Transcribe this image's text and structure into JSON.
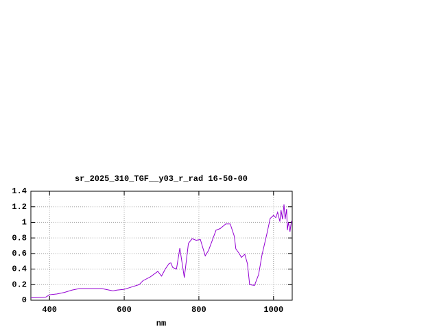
{
  "chart_data": {
    "type": "line",
    "title": "sr_2025_310_TGF__y03_r_rad 16-50-00",
    "xlabel": "nm",
    "x": [
      350,
      390,
      400,
      420,
      440,
      460,
      480,
      500,
      520,
      540,
      560,
      570,
      580,
      600,
      620,
      640,
      650,
      670,
      690,
      700,
      710,
      720,
      725,
      730,
      740,
      749,
      761,
      772,
      782,
      793,
      804,
      817,
      826,
      846,
      857,
      872,
      884,
      895,
      899,
      908,
      914,
      923,
      930,
      936,
      949,
      960,
      969,
      982,
      991,
      1000,
      1006,
      1011,
      1017,
      1020,
      1024,
      1028,
      1031,
      1035,
      1037,
      1040,
      1044,
      1048
    ],
    "series": [
      {
        "color": "#9400d3",
        "values": [
          0.03,
          0.04,
          0.07,
          0.08,
          0.1,
          0.13,
          0.15,
          0.15,
          0.15,
          0.15,
          0.13,
          0.12,
          0.13,
          0.14,
          0.17,
          0.2,
          0.25,
          0.3,
          0.37,
          0.31,
          0.4,
          0.47,
          0.48,
          0.42,
          0.4,
          0.67,
          0.29,
          0.73,
          0.79,
          0.77,
          0.78,
          0.57,
          0.64,
          0.9,
          0.92,
          0.98,
          0.98,
          0.82,
          0.66,
          0.6,
          0.55,
          0.59,
          0.47,
          0.2,
          0.19,
          0.33,
          0.58,
          0.85,
          1.05,
          1.09,
          1.06,
          1.13,
          1.01,
          1.16,
          1.04,
          1.23,
          1.04,
          1.17,
          0.9,
          1.0,
          0.88,
          1.02
        ]
      }
    ],
    "xlim": [
      350,
      1050
    ],
    "xticks": [
      400,
      600,
      800,
      1000
    ],
    "ylim": [
      0,
      1.4
    ],
    "yticks": [
      0,
      0.2,
      0.4,
      0.6,
      0.8,
      1,
      1.2,
      1.4
    ],
    "grid": true
  }
}
